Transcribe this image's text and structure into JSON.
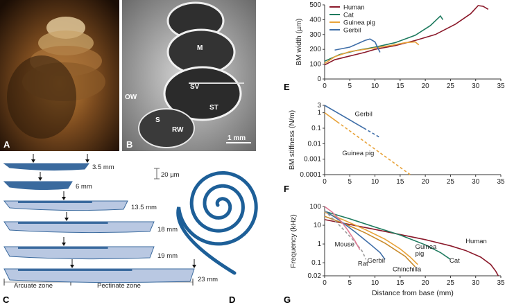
{
  "panels": {
    "a": {
      "letter": "A"
    },
    "b": {
      "letter": "B",
      "labels": [
        "M",
        "SV",
        "ST",
        "OW",
        "S",
        "RW"
      ],
      "scalebar": "1 mm"
    },
    "c": {
      "letter": "C",
      "distances": [
        "3.5 mm",
        "6 mm",
        "13.5 mm",
        "18 mm",
        "19 mm",
        "23 mm"
      ],
      "scalebar": "20 µm",
      "zones": [
        "Arcuate zone",
        "Pectinate zone"
      ]
    },
    "d": {
      "letter": "D"
    },
    "e": {
      "letter": "E"
    },
    "f": {
      "letter": "F"
    },
    "g": {
      "letter": "G"
    }
  },
  "colors": {
    "human": "#8b1a2b",
    "cat": "#1e7a5e",
    "guinea_pig": "#e8a33a",
    "gerbil": "#3f6ea8",
    "mouse": "#e07a95",
    "rat": "#9a9a9a",
    "chinchilla": "#c98a2a",
    "membrane_dark": "#3a6a9e",
    "membrane_light": "#b9c8e2",
    "spiral": "#1d5f98"
  },
  "chart_data": [
    {
      "type": "line",
      "panel": "E",
      "xlabel": "",
      "ylabel": "BM width (µm)",
      "xlim": [
        0,
        35
      ],
      "ylim": [
        0,
        500
      ],
      "xticks": [
        0,
        5,
        10,
        15,
        20,
        25,
        30,
        35
      ],
      "yticks": [
        0,
        100,
        200,
        300,
        400,
        500
      ],
      "legend": "top-left",
      "series": [
        {
          "name": "Human",
          "color": "#8b1a2b",
          "x": [
            0,
            2,
            5,
            8,
            10,
            14,
            18,
            22,
            26,
            29,
            30.5,
            31.5,
            32.5
          ],
          "y": [
            95,
            130,
            155,
            180,
            200,
            225,
            260,
            300,
            370,
            440,
            495,
            490,
            470
          ]
        },
        {
          "name": "Cat",
          "color": "#1e7a5e",
          "x": [
            0,
            3,
            6,
            10,
            14,
            18,
            21,
            23,
            23.5
          ],
          "y": [
            120,
            165,
            190,
            215,
            245,
            295,
            360,
            425,
            400
          ]
        },
        {
          "name": "Guinea pig",
          "color": "#e8a33a",
          "x": [
            0,
            2,
            5,
            9,
            13,
            16,
            18,
            18.7
          ],
          "y": [
            105,
            150,
            185,
            205,
            225,
            245,
            250,
            230
          ]
        },
        {
          "name": "Gerbil",
          "color": "#3f6ea8",
          "x": [
            2,
            5,
            8,
            9,
            10,
            11
          ],
          "y": [
            195,
            215,
            260,
            270,
            250,
            180
          ]
        }
      ]
    },
    {
      "type": "line",
      "panel": "F",
      "xlabel": "",
      "ylabel": "BM stiffness (N/m)",
      "xlim": [
        0,
        35
      ],
      "ylim": [
        0.0001,
        3
      ],
      "yscale": "log",
      "xticks": [
        0,
        5,
        10,
        15,
        20,
        25,
        30,
        35
      ],
      "yticks": [
        0.0001,
        0.001,
        0.01,
        0.1,
        1,
        3
      ],
      "ytick_labels": [
        "0.0001",
        "0.001",
        "0.01",
        "0.1",
        "1",
        "3"
      ],
      "series": [
        {
          "name": "Gerbil",
          "color": "#3f6ea8",
          "x": [
            0,
            11
          ],
          "y": [
            3,
            0.025
          ],
          "dashed_after_x": 7.8
        },
        {
          "name": "Guinea pig",
          "color": "#e8a33a",
          "x": [
            0,
            17
          ],
          "y": [
            1,
            0.0001
          ],
          "dashed_after_x": 2.5
        }
      ]
    },
    {
      "type": "line",
      "panel": "G",
      "xlabel": "Distance from base (mm)",
      "ylabel": "Frequency (kHz)",
      "xlim": [
        0,
        35
      ],
      "ylim": [
        0.02,
        100
      ],
      "yscale": "log",
      "xticks": [
        0,
        5,
        10,
        15,
        20,
        25,
        30,
        35
      ],
      "yticks": [
        0.02,
        0.1,
        1,
        10,
        100
      ],
      "ytick_labels": [
        "0.02",
        "0.1",
        "1",
        "10",
        "100"
      ],
      "series": [
        {
          "name": "Human",
          "color": "#8b1a2b",
          "x": [
            0,
            5,
            10,
            15,
            20,
            25,
            28,
            31,
            33,
            34,
            34.5
          ],
          "y": [
            20,
            11,
            6,
            3.2,
            1.7,
            0.8,
            0.45,
            0.2,
            0.08,
            0.035,
            0.02
          ]
        },
        {
          "name": "Cat",
          "color": "#1e7a5e",
          "x": [
            0,
            5,
            10,
            15,
            20,
            23,
            25
          ],
          "y": [
            55,
            22,
            8,
            3,
            0.9,
            0.35,
            0.15
          ]
        },
        {
          "name": "Guinea pig",
          "color": "#e8a33a",
          "x": [
            0,
            4,
            8,
            12,
            15,
            17,
            18.5
          ],
          "y": [
            50,
            18,
            6,
            1.8,
            0.55,
            0.2,
            0.08
          ]
        },
        {
          "name": "Chinchilla",
          "color": "#c98a2a",
          "x": [
            0,
            4,
            8,
            12,
            16,
            18
          ],
          "y": [
            30,
            12,
            4,
            1.1,
            0.22,
            0.06
          ]
        },
        {
          "name": "Gerbil",
          "color": "#3f6ea8",
          "x": [
            0,
            3,
            6,
            9,
            11,
            12
          ],
          "y": [
            60,
            18,
            4.5,
            1.0,
            0.35,
            0.15
          ]
        },
        {
          "name": "Rat",
          "color": "#9a9a9a",
          "dashed": true,
          "x": [
            0,
            2,
            4,
            6,
            7.5,
            8.2
          ],
          "y": [
            60,
            18,
            5,
            1.3,
            0.4,
            0.15
          ]
        },
        {
          "name": "Mouse",
          "color": "#e07a95",
          "x": [
            0,
            1.5,
            3,
            4.5,
            6,
            7
          ],
          "y": [
            100,
            50,
            20,
            6,
            1.5,
            0.5
          ]
        }
      ],
      "curve_labels": [
        "Human",
        "Cat",
        "Guinea\npig",
        "Chinchilla",
        "Gerbil",
        "Rat",
        "Mouse"
      ]
    }
  ]
}
